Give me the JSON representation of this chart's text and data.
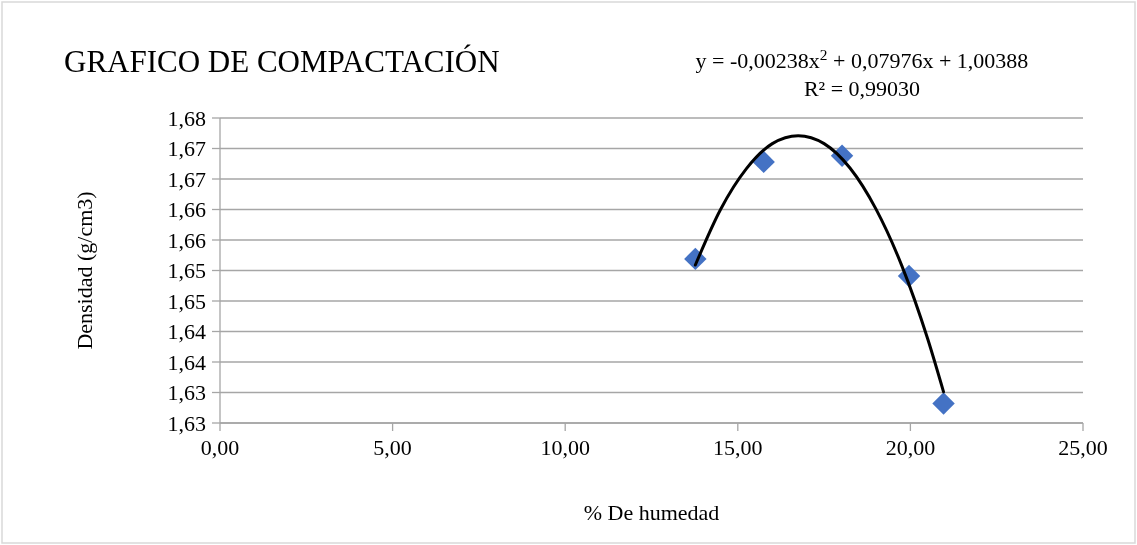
{
  "chart_data": {
    "type": "scatter",
    "title": "GRAFICO DE COMPACTACIÓN",
    "xlabel": "% De humedad",
    "ylabel": "Densidad (g/cm3)",
    "annotations": [
      "y = -0,00238x$^{2}$ + 0,07976x + 1,00388",
      "R² = 0,99030"
    ],
    "xlim": [
      0,
      25
    ],
    "xticks": [
      {
        "value": 0,
        "label": "0,00"
      },
      {
        "value": 5,
        "label": "5,00"
      },
      {
        "value": 10,
        "label": "10,00"
      },
      {
        "value": 15,
        "label": "15,00"
      },
      {
        "value": 20,
        "label": "20,00"
      },
      {
        "value": 25,
        "label": "25,00"
      }
    ],
    "ylim": [
      1.625,
      1.675
    ],
    "yticks": [
      {
        "value": 1.625,
        "label": "1,63"
      },
      {
        "value": 1.63,
        "label": "1,63"
      },
      {
        "value": 1.635,
        "label": "1,64"
      },
      {
        "value": 1.64,
        "label": "1,64"
      },
      {
        "value": 1.645,
        "label": "1,65"
      },
      {
        "value": 1.65,
        "label": "1,65"
      },
      {
        "value": 1.655,
        "label": "1,66"
      },
      {
        "value": 1.66,
        "label": "1,66"
      },
      {
        "value": 1.665,
        "label": "1,67"
      },
      {
        "value": 1.67,
        "label": "1,67"
      },
      {
        "value": 1.675,
        "label": "1,68"
      }
    ],
    "grid": "y",
    "series": [
      {
        "type": "line",
        "color": "#000000",
        "marker": "none",
        "line_style": "solid",
        "x": [
          13.77,
          14.5,
          15.25,
          16,
          16.75,
          17.5,
          18.25,
          19,
          19.75,
          20.5,
          20.96
        ],
        "values": [
          1.6509,
          1.66,
          1.6667,
          1.6708,
          1.6721,
          1.6708,
          1.6668,
          1.6601,
          1.6508,
          1.6388,
          1.6301
        ]
      },
      {
        "type": "scatter",
        "color": "#4472c4",
        "marker": "diamond",
        "x": [
          13.77,
          15.75,
          18.02,
          19.96,
          20.96
        ],
        "values": [
          1.6519,
          1.6678,
          1.6688,
          1.6491,
          1.6282
        ]
      }
    ]
  }
}
